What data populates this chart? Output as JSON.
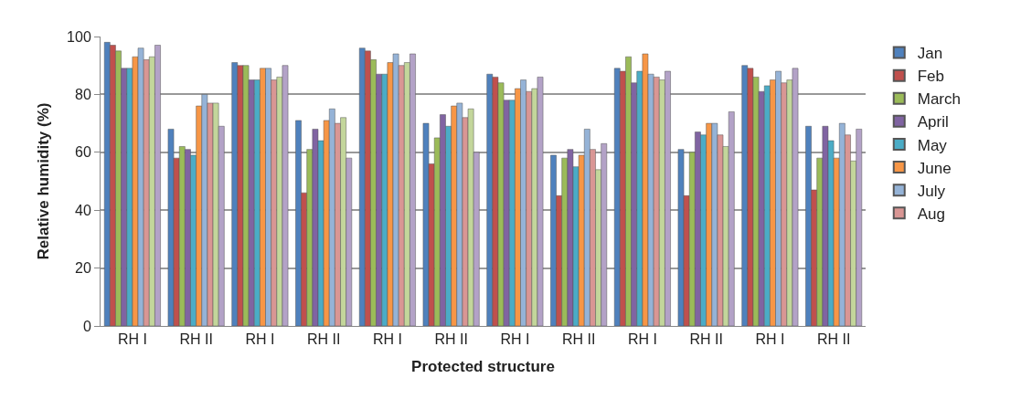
{
  "chart_data": {
    "type": "bar",
    "xlabel": "Protected structure",
    "ylabel": "Relative humidity (%)",
    "categories": [
      "RH I",
      "RH II",
      "RH I",
      "RH II",
      "RH I",
      "RH II",
      "RH I",
      "RH II",
      "RH I",
      "RH II",
      "RH I",
      "RH II"
    ],
    "ylim": [
      0,
      100
    ],
    "yticks": [
      0,
      20,
      40,
      60,
      80,
      100
    ],
    "grid": "y",
    "legend": "right",
    "series": [
      {
        "name": "Jan",
        "color": "#4f81bd",
        "values": [
          98,
          68,
          91,
          71,
          96,
          70,
          87,
          59,
          89,
          61,
          90,
          69
        ]
      },
      {
        "name": "Feb",
        "color": "#c0504d",
        "values": [
          97,
          58,
          90,
          46,
          95,
          56,
          86,
          45,
          88,
          45,
          89,
          47
        ]
      },
      {
        "name": "March",
        "color": "#9bbb59",
        "values": [
          95,
          62,
          90,
          61,
          92,
          65,
          84,
          58,
          93,
          60,
          86,
          58
        ]
      },
      {
        "name": "April",
        "color": "#8064a2",
        "values": [
          89,
          61,
          85,
          68,
          87,
          73,
          78,
          61,
          84,
          67,
          81,
          69
        ]
      },
      {
        "name": "May",
        "color": "#4bacc6",
        "values": [
          89,
          59,
          85,
          64,
          87,
          69,
          78,
          55,
          88,
          66,
          83,
          64
        ]
      },
      {
        "name": "June",
        "color": "#f79646",
        "values": [
          93,
          76,
          89,
          71,
          91,
          76,
          82,
          59,
          94,
          70,
          85,
          58
        ]
      },
      {
        "name": "July",
        "color": "#95b3d7",
        "values": [
          96,
          80,
          89,
          75,
          94,
          77,
          85,
          68,
          87,
          70,
          88,
          70
        ]
      },
      {
        "name": "Aug",
        "color": "#d99694",
        "values": [
          92,
          77,
          85,
          70,
          90,
          72,
          81,
          61,
          86,
          66,
          84,
          66
        ]
      },
      {
        "color": "#c3d69b",
        "values": [
          93,
          77,
          86,
          72,
          91,
          75,
          82,
          54,
          85,
          62,
          85,
          57
        ]
      },
      {
        "color": "#b3a2c7",
        "values": [
          97,
          69,
          90,
          58,
          94,
          60,
          86,
          63,
          88,
          74,
          89,
          68
        ]
      }
    ]
  }
}
